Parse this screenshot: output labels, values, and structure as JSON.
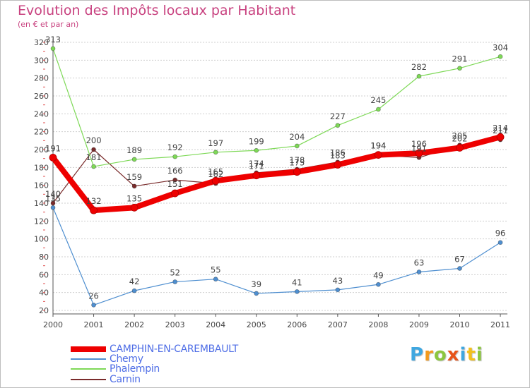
{
  "header": {
    "title": "Evolution des Impôts locaux par Habitant",
    "subtitle": "(en € et par an)"
  },
  "chart_data": {
    "type": "line",
    "title": "Evolution des Impôts locaux par Habitant",
    "subtitle": "(en € et par an)",
    "xlabel": "",
    "ylabel": "",
    "x": [
      "2000",
      "2001",
      "2002",
      "2003",
      "2004",
      "2005",
      "2006",
      "2007",
      "2008",
      "2009",
      "2010",
      "2011"
    ],
    "ylim": [
      20,
      320
    ],
    "yticks": [
      20,
      40,
      60,
      80,
      100,
      120,
      140,
      160,
      180,
      200,
      220,
      240,
      260,
      280,
      300,
      320
    ],
    "grid": "horizontal dotted",
    "legend": "bottom-left",
    "series": [
      {
        "name": "CAMPHIN-EN-CAREMBAULT",
        "color": "#ee0000",
        "values": [
          191,
          132,
          135,
          151,
          165,
          171,
          175,
          183,
          194,
          196,
          202,
          214
        ]
      },
      {
        "name": "Chemy",
        "color": "#4f8fd0",
        "values": [
          135,
          26,
          42,
          52,
          55,
          39,
          41,
          43,
          49,
          63,
          67,
          96
        ]
      },
      {
        "name": "Phalempin",
        "color": "#7ed957",
        "values": [
          313,
          181,
          189,
          192,
          197,
          199,
          204,
          227,
          245,
          282,
          291,
          304
        ]
      },
      {
        "name": "Carnin",
        "color": "#7a2b2b",
        "values": [
          140,
          200,
          159,
          166,
          162,
          174,
          178,
          186,
          194,
          191,
          205,
          211
        ]
      }
    ]
  },
  "logo": {
    "letters": [
      {
        "char": "P",
        "color": "#3fa7e0"
      },
      {
        "char": "r",
        "color": "#f39a1d"
      },
      {
        "char": "o",
        "color": "#8cc63f"
      },
      {
        "char": "x",
        "color": "#e8541a"
      },
      {
        "char": "i",
        "color": "#3fa7e0"
      },
      {
        "char": "t",
        "color": "#f3c01d"
      },
      {
        "char": "i",
        "color": "#8cc63f"
      }
    ]
  }
}
